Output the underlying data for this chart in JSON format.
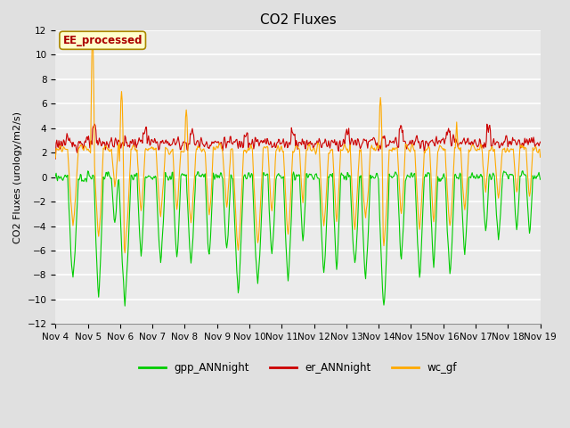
{
  "title": "CO2 Fluxes",
  "ylabel": "CO2 Fluxes (urology/m2/s)",
  "ylim": [
    -12,
    12
  ],
  "yticks": [
    -12,
    -10,
    -8,
    -6,
    -4,
    -2,
    0,
    2,
    4,
    6,
    8,
    10,
    12
  ],
  "x_tick_labels": [
    "Nov 4",
    "Nov 5",
    "Nov 6",
    "Nov 7",
    "Nov 8",
    "Nov 9",
    "Nov 10",
    "Nov 11",
    "Nov 12",
    "Nov 13",
    "Nov 14",
    "Nov 15",
    "Nov 16",
    "Nov 17",
    "Nov 18",
    "Nov 19"
  ],
  "series": {
    "gpp_ANNnight": {
      "color": "#00cc00",
      "linewidth": 0.8
    },
    "er_ANNnight": {
      "color": "#cc0000",
      "linewidth": 0.8
    },
    "wc_gf": {
      "color": "#ffaa00",
      "linewidth": 0.8
    }
  },
  "annotation_text": "EE_processed",
  "annotation_color": "#aa0000",
  "annotation_bg": "#ffffcc",
  "annotation_border": "#aa8800",
  "background_color": "#e0e0e0",
  "plot_bg": "#ebebeb",
  "grid_color": "#ffffff",
  "title_fontsize": 11,
  "axis_fontsize": 8,
  "tick_fontsize": 7.5
}
